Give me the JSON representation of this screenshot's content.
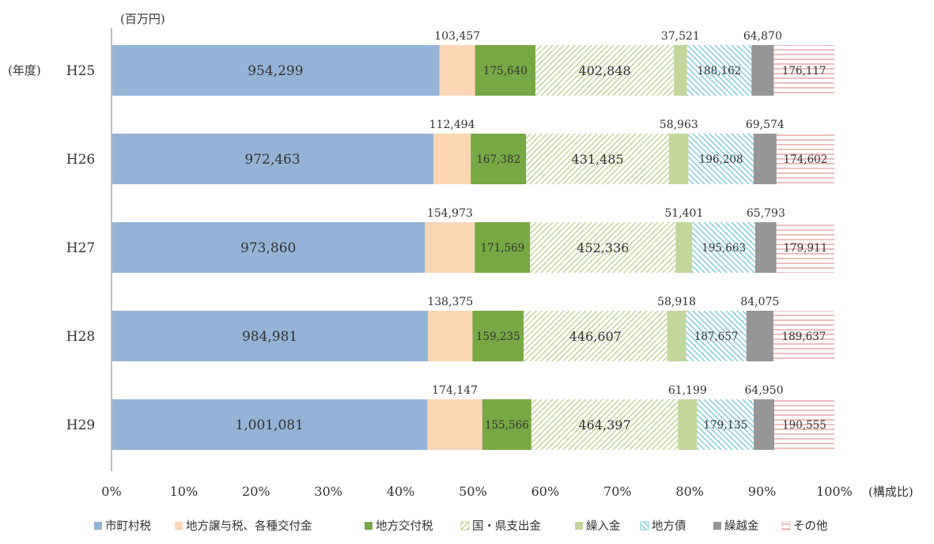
{
  "chart_data": {
    "type": "bar",
    "orientation": "horizontal",
    "stacked": "percent",
    "unit_label": "(百万円)",
    "y_axis_label": "(年度)",
    "x_axis_label": "(構成比)",
    "x_ticks": [
      "0%",
      "10%",
      "20%",
      "30%",
      "40%",
      "50%",
      "60%",
      "70%",
      "80%",
      "90%",
      "100%"
    ],
    "xlim": [
      0,
      100
    ],
    "grid": false,
    "legend_position": "bottom",
    "categories": [
      "H25",
      "H26",
      "H27",
      "H28",
      "H29"
    ],
    "series": [
      {
        "name": "市町村税",
        "color": "#95b3d7",
        "pattern": "solid",
        "values": [
          954299,
          972463,
          973860,
          984981,
          1001081
        ]
      },
      {
        "name": "地方譲与税、各種交付金",
        "color": "#fcd5b5",
        "pattern": "solid",
        "values": [
          103457,
          112494,
          154973,
          138375,
          174147
        ]
      },
      {
        "name": "地方交付税",
        "color": "#77a844",
        "pattern": "solid",
        "values": [
          175640,
          167382,
          171569,
          159235,
          155566
        ]
      },
      {
        "name": "国・県支出金",
        "color": "#9bbb59",
        "pattern": "diag-up",
        "values": [
          402848,
          431485,
          452336,
          446607,
          464397
        ]
      },
      {
        "name": "繰入金",
        "color": "#c3d69b",
        "pattern": "solid",
        "values": [
          37521,
          58963,
          51401,
          58918,
          61199
        ]
      },
      {
        "name": "地方債",
        "color": "#31b0c8",
        "pattern": "diag-down",
        "values": [
          188162,
          196208,
          195663,
          187657,
          179135
        ]
      },
      {
        "name": "繰越金",
        "color": "#969696",
        "pattern": "solid",
        "values": [
          64870,
          69574,
          65793,
          84075,
          64950
        ]
      },
      {
        "name": "その他",
        "color": "#e69a9a",
        "pattern": "hlines",
        "values": [
          176117,
          174602,
          179911,
          189637,
          190555
        ]
      }
    ],
    "data_labels": [
      [
        "954,299",
        "103,457",
        "175,640",
        "402,848",
        "37,521",
        "188,162",
        "64,870",
        "176,117"
      ],
      [
        "972,463",
        "112,494",
        "167,382",
        "431,485",
        "58,963",
        "196,208",
        "69,574",
        "174,602"
      ],
      [
        "973,860",
        "154,973",
        "171,569",
        "452,336",
        "51,401",
        "195,663",
        "65,793",
        "179,911"
      ],
      [
        "984,981",
        "138,375",
        "159,235",
        "446,607",
        "58,918",
        "187,657",
        "84,075",
        "189,637"
      ],
      [
        "1,001,081",
        "174,147",
        "155,566",
        "464,397",
        "61,199",
        "179,135",
        "64,950",
        "190,555"
      ]
    ]
  }
}
